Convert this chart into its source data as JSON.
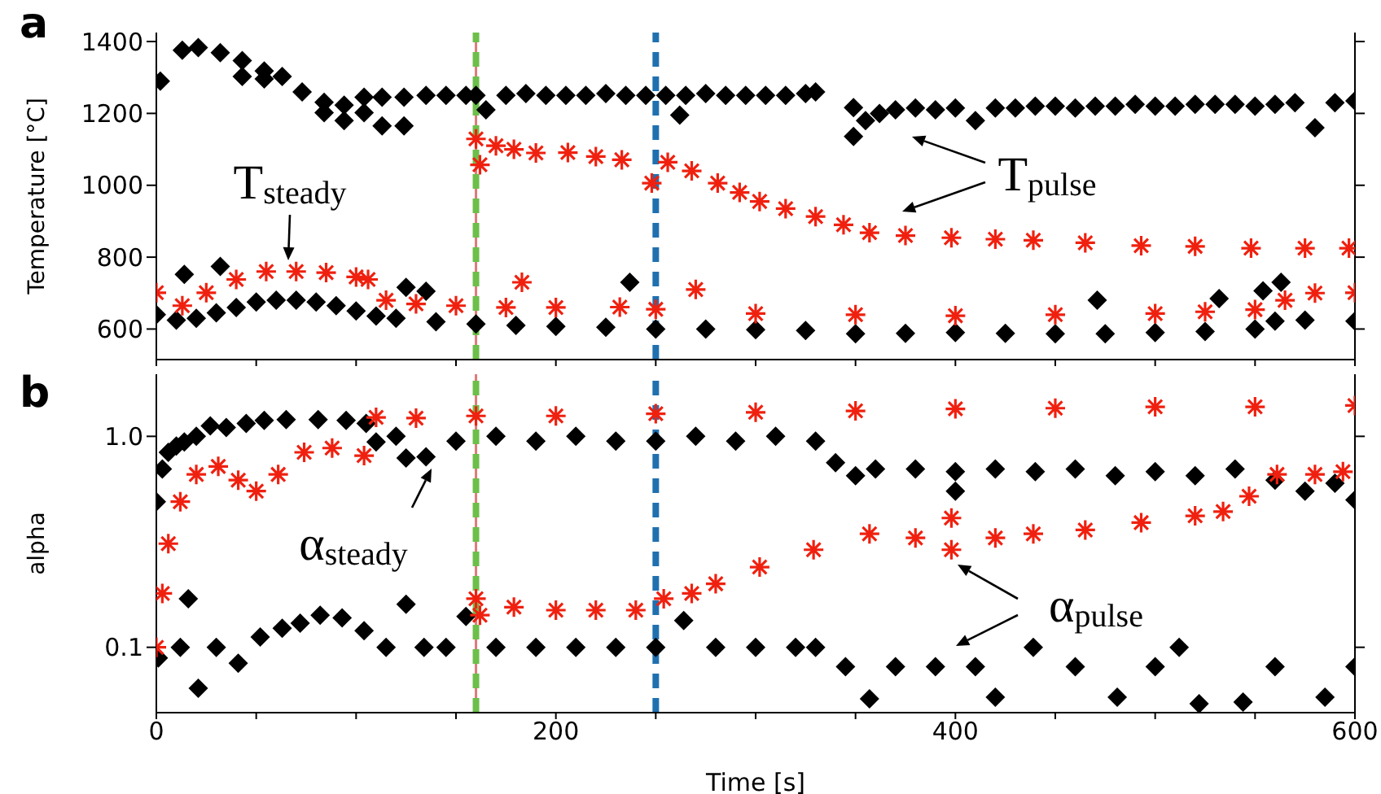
{
  "chart_data": [
    {
      "type": "scatter",
      "title": "a",
      "ylabel": "Temperature [°C]",
      "xlim": [
        0,
        600
      ],
      "ylim": [
        515,
        1425
      ],
      "tick_labels": "y",
      "xticks": [
        0,
        {
          "value": 50,
          "label": null
        },
        {
          "value": 100,
          "label": null
        },
        {
          "value": 150,
          "label": null
        },
        {
          "value": 200,
          "label": null
        },
        {
          "value": 250,
          "label": null
        },
        {
          "value": 300,
          "label": null
        },
        {
          "value": 350,
          "label": null
        },
        {
          "value": 400,
          "label": null
        },
        {
          "value": 450,
          "label": null
        },
        {
          "value": 500,
          "label": null
        },
        {
          "value": 550,
          "label": null
        },
        {
          "value": 600,
          "label": null
        }
      ],
      "yticks": [
        600,
        800,
        1000,
        1200,
        1400
      ],
      "ref_lines": [
        {
          "axis": "x",
          "value": 160,
          "color": "#e07a7a",
          "line_style": "solid"
        },
        {
          "axis": "x",
          "value": 160,
          "color": "#6cbf4a",
          "line_style": "dashed"
        },
        {
          "axis": "x",
          "value": 250,
          "color": "#2070b0",
          "line_style": "dashed"
        }
      ],
      "annotations": [
        "T$_{steady}$",
        "T$_{pulse}$"
      ],
      "series": [
        {
          "color": "#000000",
          "marker": "diamond",
          "x": [
            2,
            13,
            21,
            32,
            43,
            43,
            54,
            54,
            63,
            73,
            84,
            84,
            94,
            94,
            104,
            104,
            113,
            113,
            124,
            124,
            135,
            145,
            155,
            160,
            165,
            175,
            185,
            195,
            205,
            215,
            225,
            235,
            245,
            255,
            262,
            265,
            275,
            285,
            295,
            305,
            315,
            325,
            330,
            349,
            349,
            355,
            362,
            370,
            380,
            390,
            400,
            410,
            420,
            430,
            440,
            450,
            460,
            470,
            480,
            490,
            500,
            510,
            520,
            530,
            540,
            550,
            560,
            570,
            580,
            590,
            600
          ],
          "values": [
            1290,
            1376,
            1383,
            1369,
            1347,
            1303,
            1318,
            1296,
            1303,
            1260,
            1231,
            1202,
            1223,
            1180,
            1245,
            1202,
            1245,
            1165,
            1245,
            1165,
            1250,
            1250,
            1250,
            1250,
            1210,
            1250,
            1255,
            1250,
            1250,
            1250,
            1255,
            1250,
            1250,
            1250,
            1195,
            1250,
            1255,
            1250,
            1250,
            1250,
            1250,
            1255,
            1260,
            1216,
            1136,
            1180,
            1200,
            1210,
            1215,
            1210,
            1215,
            1180,
            1215,
            1215,
            1220,
            1220,
            1215,
            1220,
            1220,
            1225,
            1220,
            1220,
            1225,
            1225,
            1225,
            1220,
            1225,
            1230,
            1160,
            1230,
            1235
          ]
        },
        {
          "color": "#000000",
          "marker": "diamond",
          "x": [
            0,
            10,
            20,
            30,
            40,
            50,
            60,
            70,
            80,
            90,
            100,
            110,
            120,
            140,
            160,
            180,
            200,
            225,
            250,
            275,
            300,
            325,
            350,
            375,
            400,
            425,
            450,
            475,
            500,
            525,
            550,
            560,
            575,
            600,
            14,
            32,
            125,
            135,
            237,
            471,
            532,
            554,
            563
          ],
          "values": [
            640,
            625,
            630,
            645,
            660,
            675,
            680,
            680,
            675,
            665,
            650,
            636,
            630,
            620,
            614,
            610,
            607,
            605,
            600,
            600,
            598,
            596,
            587,
            588,
            590,
            588,
            587,
            587,
            590,
            593,
            600,
            622,
            625,
            622,
            752,
            774,
            716,
            705,
            730,
            680,
            685,
            706,
            730
          ]
        },
        {
          "color": "#f0200f",
          "marker": "cross",
          "x": [
            0,
            13,
            25,
            40,
            55,
            70,
            85,
            100,
            106,
            115,
            130,
            150,
            175,
            183,
            200,
            232,
            250,
            270,
            300,
            350,
            400,
            450,
            500,
            525,
            550,
            565,
            580,
            600
          ],
          "values": [
            701,
            665,
            701,
            738,
            760,
            760,
            757,
            745,
            738,
            680,
            670,
            665,
            660,
            730,
            660,
            661,
            655,
            710,
            643,
            640,
            637,
            640,
            643,
            648,
            654,
            680,
            700,
            701
          ]
        },
        {
          "color": "#f0200f",
          "marker": "cross",
          "x": [
            160,
            162,
            170,
            179,
            190,
            206,
            220,
            233,
            248,
            256,
            268,
            281,
            292,
            302,
            315,
            330,
            344,
            357,
            375,
            398,
            420,
            439,
            465,
            493,
            520,
            548,
            575,
            597
          ],
          "values": [
            1129,
            1057,
            1110,
            1100,
            1090,
            1091,
            1080,
            1071,
            1006,
            1064,
            1040,
            1006,
            980,
            955,
            935,
            913,
            890,
            868,
            860,
            854,
            850,
            847,
            840,
            832,
            830,
            825,
            825,
            825
          ]
        }
      ]
    },
    {
      "type": "scatter",
      "title": "b",
      "xlabel": "Time [s]",
      "ylabel": "alpha",
      "xlim": [
        0,
        600
      ],
      "ylim": [
        0.049,
        1.97
      ],
      "log": "y",
      "xticks": [
        0,
        {
          "value": 50,
          "label": null
        },
        {
          "value": 100,
          "label": null
        },
        {
          "value": 150,
          "label": null
        },
        200,
        {
          "value": 250,
          "label": null
        },
        {
          "value": 300,
          "label": null
        },
        {
          "value": 350,
          "label": null
        },
        400,
        {
          "value": 450,
          "label": null
        },
        {
          "value": 500,
          "label": null
        },
        {
          "value": 550,
          "label": null
        },
        600
      ],
      "yticks": [
        0.1,
        {
          "value": 1,
          "label": "1.0"
        }
      ],
      "ref_lines": [
        {
          "axis": "x",
          "value": 160,
          "color": "#e07a7a",
          "line_style": "solid"
        },
        {
          "axis": "x",
          "value": 160,
          "color": "#6cbf4a",
          "line_style": "dashed"
        },
        {
          "axis": "x",
          "value": 250,
          "color": "#2070b0",
          "line_style": "dashed"
        }
      ],
      "annotations": [
        "α$_{steady}$",
        "α$_{pulse}$"
      ],
      "series": [
        {
          "color": "#000000",
          "marker": "diamond",
          "x": [
            0,
            3,
            6,
            10,
            14,
            20,
            27,
            35,
            45,
            54,
            65,
            81,
            95,
            105,
            110,
            120,
            125,
            135,
            150,
            170,
            190,
            210,
            230,
            250,
            270,
            290,
            310,
            330,
            340,
            350,
            360,
            380,
            400,
            400,
            420,
            440,
            460,
            480,
            500,
            520,
            540,
            560,
            575,
            590,
            600
          ],
          "values": [
            0.49,
            0.7,
            0.84,
            0.9,
            0.94,
            1,
            1.12,
            1.1,
            1.15,
            1.19,
            1.2,
            1.2,
            1.19,
            1.15,
            0.94,
            1,
            0.79,
            0.8,
            0.95,
            1,
            0.95,
            1,
            0.95,
            0.95,
            1,
            0.95,
            1,
            0.95,
            0.75,
            0.65,
            0.7,
            0.7,
            0.68,
            0.55,
            0.7,
            0.68,
            0.7,
            0.65,
            0.68,
            0.65,
            0.7,
            0.62,
            0.55,
            0.6,
            0.5
          ]
        },
        {
          "color": "#000000",
          "marker": "diamond",
          "x": [
            1,
            12,
            16,
            21,
            30,
            41,
            52,
            63,
            72,
            82,
            93,
            104,
            115,
            125,
            134,
            145,
            155,
            170,
            190,
            210,
            230,
            250,
            264,
            280,
            300,
            320,
            330,
            345,
            357,
            370,
            390,
            410,
            420,
            439,
            460,
            481,
            500,
            512,
            522,
            544,
            560,
            585,
            600
          ],
          "values": [
            0.089,
            0.1,
            0.17,
            0.064,
            0.1,
            0.084,
            0.112,
            0.123,
            0.13,
            0.142,
            0.138,
            0.12,
            0.1,
            0.16,
            0.1,
            0.1,
            0.14,
            0.1,
            0.1,
            0.1,
            0.1,
            0.1,
            0.134,
            0.1,
            0.1,
            0.1,
            0.1,
            0.081,
            0.057,
            0.081,
            0.081,
            0.081,
            0.058,
            0.1,
            0.081,
            0.058,
            0.081,
            0.1,
            0.054,
            0.055,
            0.081,
            0.058,
            0.081
          ]
        },
        {
          "color": "#f0200f",
          "marker": "cross",
          "x": [
            0,
            3,
            6,
            12,
            20,
            31,
            41,
            50,
            61,
            74,
            88,
            104,
            110,
            130,
            160,
            200,
            250,
            300,
            350,
            400,
            450,
            500,
            550,
            600
          ],
          "values": [
            0.1,
            0.18,
            0.31,
            0.49,
            0.66,
            0.72,
            0.62,
            0.55,
            0.66,
            0.84,
            0.88,
            0.81,
            1.23,
            1.22,
            1.25,
            1.25,
            1.28,
            1.3,
            1.32,
            1.35,
            1.36,
            1.38,
            1.38,
            1.4
          ]
        },
        {
          "color": "#f0200f",
          "marker": "cross",
          "x": [
            160,
            162,
            179,
            200,
            220,
            240,
            254,
            268,
            280,
            302,
            329,
            357,
            380,
            398,
            398,
            420,
            439,
            465,
            493,
            520,
            534,
            547,
            561,
            580,
            594
          ],
          "values": [
            0.17,
            0.142,
            0.155,
            0.15,
            0.15,
            0.15,
            0.17,
            0.18,
            0.2,
            0.24,
            0.29,
            0.345,
            0.33,
            0.29,
            0.41,
            0.33,
            0.345,
            0.36,
            0.39,
            0.42,
            0.44,
            0.52,
            0.66,
            0.66,
            0.68
          ]
        }
      ]
    }
  ]
}
